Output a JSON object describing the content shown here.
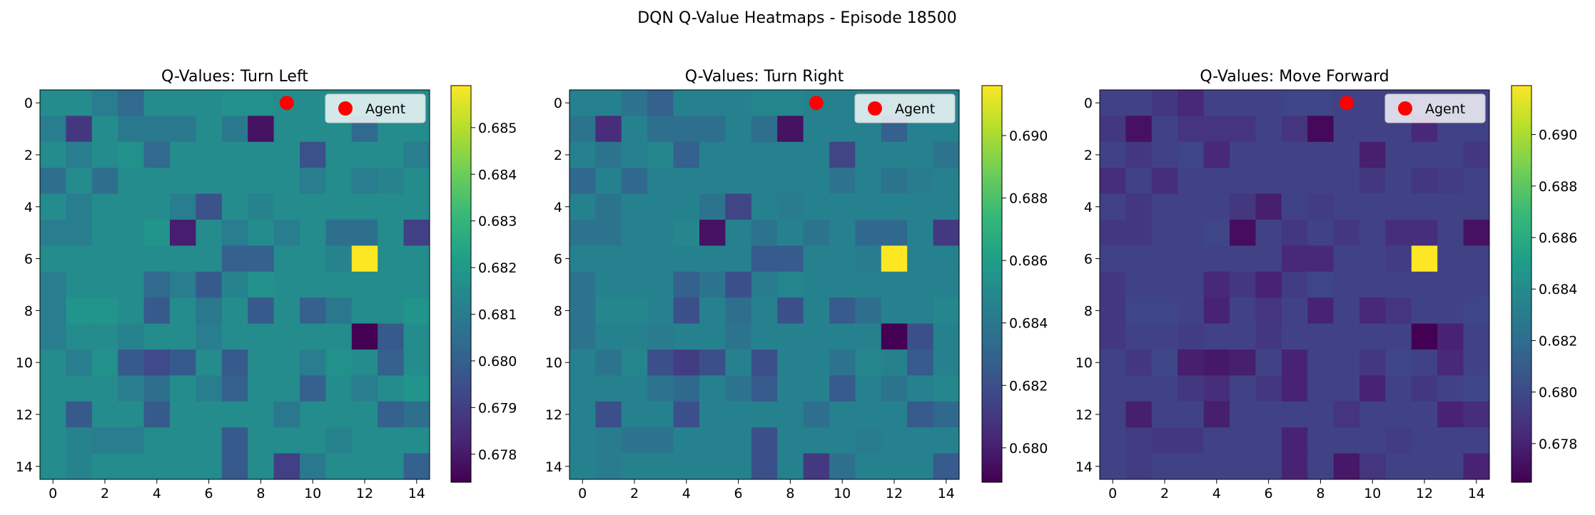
{
  "figure": {
    "title": "DQN Q-Value Heatmaps - Episode 18500"
  },
  "chart_data": [
    {
      "type": "heatmap",
      "title": "Q-Values: Turn Left",
      "grid_size": 15,
      "x_ticks": [
        "0",
        "2",
        "4",
        "6",
        "8",
        "10",
        "12",
        "14"
      ],
      "y_ticks": [
        "0",
        "2",
        "4",
        "6",
        "8",
        "10",
        "12",
        "14"
      ],
      "colorbar": {
        "vmin": 0.6774,
        "vmax": 0.6859,
        "ticks": [
          "0.678",
          "0.679",
          "0.680",
          "0.681",
          "0.682",
          "0.683",
          "0.684",
          "0.685"
        ]
      },
      "legend": {
        "label": "Agent",
        "placement": "top-right"
      },
      "agent": {
        "x": 9,
        "y": 0
      },
      "values": [
        [
          0.6815,
          0.6815,
          0.681,
          0.6803,
          0.6815,
          0.6815,
          0.6815,
          0.6817,
          0.6817,
          0.6815,
          0.6815,
          0.6815,
          0.6815,
          0.6815,
          0.6815
        ],
        [
          0.681,
          0.6788,
          0.6815,
          0.6808,
          0.6808,
          0.6808,
          0.6815,
          0.6808,
          0.6778,
          0.6815,
          0.6815,
          0.6815,
          0.6803,
          0.6815,
          0.6815
        ],
        [
          0.6815,
          0.681,
          0.6815,
          0.6817,
          0.6803,
          0.6815,
          0.6815,
          0.6815,
          0.6815,
          0.6815,
          0.6795,
          0.6815,
          0.6815,
          0.6815,
          0.681
        ],
        [
          0.6805,
          0.6815,
          0.6805,
          0.6815,
          0.6815,
          0.6815,
          0.6815,
          0.6815,
          0.6815,
          0.6815,
          0.681,
          0.6815,
          0.681,
          0.6812,
          0.6815
        ],
        [
          0.6815,
          0.681,
          0.6815,
          0.6815,
          0.6815,
          0.681,
          0.6795,
          0.6815,
          0.6812,
          0.6815,
          0.6815,
          0.6815,
          0.6815,
          0.6815,
          0.6815
        ],
        [
          0.681,
          0.681,
          0.6815,
          0.6815,
          0.6818,
          0.6781,
          0.6815,
          0.681,
          0.6815,
          0.681,
          0.6815,
          0.6805,
          0.6805,
          0.6815,
          0.679
        ],
        [
          0.6815,
          0.6815,
          0.6815,
          0.6815,
          0.6815,
          0.6815,
          0.6815,
          0.68,
          0.68,
          0.6815,
          0.6815,
          0.6812,
          0.6859,
          0.6815,
          0.6815
        ],
        [
          0.681,
          0.6815,
          0.6815,
          0.6815,
          0.6803,
          0.681,
          0.6798,
          0.6812,
          0.6817,
          0.6815,
          0.6815,
          0.6815,
          0.6815,
          0.6815,
          0.6815
        ],
        [
          0.681,
          0.6818,
          0.6818,
          0.6815,
          0.6798,
          0.6815,
          0.6808,
          0.6815,
          0.6798,
          0.6815,
          0.68,
          0.6808,
          0.6815,
          0.6815,
          0.6818
        ],
        [
          0.681,
          0.6815,
          0.6815,
          0.6812,
          0.6815,
          0.6815,
          0.681,
          0.6815,
          0.6815,
          0.6815,
          0.6815,
          0.6815,
          0.6774,
          0.6798,
          0.6815
        ],
        [
          0.6815,
          0.681,
          0.6817,
          0.6798,
          0.6793,
          0.6798,
          0.6815,
          0.6798,
          0.6815,
          0.6815,
          0.681,
          0.6817,
          0.6815,
          0.68,
          0.6815
        ],
        [
          0.6815,
          0.6815,
          0.6815,
          0.681,
          0.6805,
          0.6815,
          0.681,
          0.68,
          0.6815,
          0.6815,
          0.68,
          0.6815,
          0.681,
          0.6815,
          0.6818
        ],
        [
          0.6815,
          0.6798,
          0.6815,
          0.6815,
          0.6798,
          0.6815,
          0.6815,
          0.6815,
          0.6815,
          0.6808,
          0.6815,
          0.6815,
          0.6815,
          0.68,
          0.6805
        ],
        [
          0.6815,
          0.6812,
          0.681,
          0.681,
          0.6815,
          0.6815,
          0.6815,
          0.6798,
          0.6815,
          0.6815,
          0.6815,
          0.6812,
          0.6815,
          0.6815,
          0.6815
        ],
        [
          0.6815,
          0.6812,
          0.6815,
          0.6815,
          0.6815,
          0.6815,
          0.6815,
          0.6798,
          0.6815,
          0.679,
          0.6808,
          0.6815,
          0.6815,
          0.6815,
          0.68
        ]
      ]
    },
    {
      "type": "heatmap",
      "title": "Q-Values: Turn Right",
      "grid_size": 15,
      "x_ticks": [
        "0",
        "2",
        "4",
        "6",
        "8",
        "10",
        "12",
        "14"
      ],
      "y_ticks": [
        "0",
        "2",
        "4",
        "6",
        "8",
        "10",
        "12",
        "14"
      ],
      "colorbar": {
        "vmin": 0.6789,
        "vmax": 0.6916,
        "ticks": [
          "0.680",
          "0.682",
          "0.684",
          "0.686",
          "0.688",
          "0.690"
        ]
      },
      "legend": {
        "label": "Agent",
        "placement": "top-right"
      },
      "agent": {
        "x": 9,
        "y": 0
      },
      "values": [
        [
          0.6845,
          0.6845,
          0.6838,
          0.6828,
          0.6845,
          0.6845,
          0.6845,
          0.6847,
          0.6847,
          0.6845,
          0.6845,
          0.6845,
          0.6845,
          0.6845,
          0.6845
        ],
        [
          0.6838,
          0.6805,
          0.6845,
          0.6835,
          0.6835,
          0.6835,
          0.6845,
          0.6835,
          0.6795,
          0.6845,
          0.6845,
          0.6845,
          0.6828,
          0.6845,
          0.6845
        ],
        [
          0.6845,
          0.6838,
          0.6845,
          0.6847,
          0.6828,
          0.6845,
          0.6845,
          0.6845,
          0.6845,
          0.6845,
          0.6815,
          0.6845,
          0.6845,
          0.6845,
          0.6838
        ],
        [
          0.6832,
          0.6845,
          0.6832,
          0.6845,
          0.6845,
          0.6845,
          0.6845,
          0.6845,
          0.6845,
          0.6845,
          0.6838,
          0.6845,
          0.6838,
          0.6842,
          0.6845
        ],
        [
          0.6845,
          0.6838,
          0.6845,
          0.6845,
          0.6845,
          0.6838,
          0.6815,
          0.6845,
          0.6842,
          0.6845,
          0.6845,
          0.6845,
          0.6845,
          0.6845,
          0.6845
        ],
        [
          0.6838,
          0.6838,
          0.6845,
          0.6845,
          0.6848,
          0.6795,
          0.6845,
          0.6838,
          0.6845,
          0.6838,
          0.6845,
          0.6832,
          0.6832,
          0.6845,
          0.681
        ],
        [
          0.6845,
          0.6845,
          0.6845,
          0.6845,
          0.6845,
          0.6845,
          0.6845,
          0.6825,
          0.6825,
          0.6845,
          0.6845,
          0.6842,
          0.6916,
          0.6845,
          0.6845
        ],
        [
          0.6838,
          0.6845,
          0.6845,
          0.6845,
          0.6828,
          0.6838,
          0.682,
          0.6842,
          0.6847,
          0.6845,
          0.6845,
          0.6845,
          0.6845,
          0.6845,
          0.6845
        ],
        [
          0.6838,
          0.6848,
          0.6848,
          0.6845,
          0.682,
          0.6845,
          0.6835,
          0.6845,
          0.682,
          0.6845,
          0.6825,
          0.6835,
          0.6845,
          0.6845,
          0.6848
        ],
        [
          0.6838,
          0.6845,
          0.6845,
          0.6842,
          0.6845,
          0.6845,
          0.6838,
          0.6845,
          0.6845,
          0.6845,
          0.6845,
          0.6845,
          0.6789,
          0.682,
          0.6845
        ],
        [
          0.6845,
          0.6838,
          0.6847,
          0.682,
          0.6812,
          0.682,
          0.6845,
          0.682,
          0.6845,
          0.6845,
          0.6838,
          0.6847,
          0.6845,
          0.6825,
          0.6845
        ],
        [
          0.6845,
          0.6845,
          0.6845,
          0.6838,
          0.6832,
          0.6845,
          0.6838,
          0.6825,
          0.6845,
          0.6845,
          0.6825,
          0.6845,
          0.6838,
          0.6845,
          0.6848
        ],
        [
          0.6845,
          0.682,
          0.6845,
          0.6845,
          0.682,
          0.6845,
          0.6845,
          0.6845,
          0.6845,
          0.6835,
          0.6845,
          0.6845,
          0.6845,
          0.6825,
          0.6832
        ],
        [
          0.6845,
          0.6842,
          0.6838,
          0.6838,
          0.6845,
          0.6845,
          0.6845,
          0.682,
          0.6845,
          0.6845,
          0.6845,
          0.6842,
          0.6845,
          0.6845,
          0.6845
        ],
        [
          0.6845,
          0.6842,
          0.6845,
          0.6845,
          0.6845,
          0.6845,
          0.6845,
          0.682,
          0.6845,
          0.681,
          0.6835,
          0.6845,
          0.6845,
          0.6845,
          0.6825
        ]
      ]
    },
    {
      "type": "heatmap",
      "title": "Q-Values: Move Forward",
      "grid_size": 15,
      "x_ticks": [
        "0",
        "2",
        "4",
        "6",
        "8",
        "10",
        "12",
        "14"
      ],
      "y_ticks": [
        "0",
        "2",
        "4",
        "6",
        "8",
        "10",
        "12",
        "14"
      ],
      "colorbar": {
        "vmin": 0.6765,
        "vmax": 0.6919,
        "ticks": [
          "0.678",
          "0.680",
          "0.682",
          "0.684",
          "0.686",
          "0.688",
          "0.690"
        ]
      },
      "legend": {
        "label": "Agent",
        "placement": "top-right"
      },
      "agent": {
        "x": 9,
        "y": 0
      },
      "values": [
        [
          0.6795,
          0.6795,
          0.679,
          0.6782,
          0.6795,
          0.6795,
          0.6795,
          0.6797,
          0.6797,
          0.6795,
          0.6795,
          0.6795,
          0.6795,
          0.6795,
          0.6795
        ],
        [
          0.679,
          0.6772,
          0.6795,
          0.6788,
          0.6788,
          0.6788,
          0.6795,
          0.6788,
          0.6768,
          0.6795,
          0.6795,
          0.6795,
          0.6782,
          0.6795,
          0.6795
        ],
        [
          0.6795,
          0.679,
          0.6795,
          0.6797,
          0.6782,
          0.6795,
          0.6795,
          0.6795,
          0.6795,
          0.6795,
          0.6778,
          0.6795,
          0.6795,
          0.6795,
          0.679
        ],
        [
          0.6785,
          0.6795,
          0.6785,
          0.6795,
          0.6795,
          0.6795,
          0.6795,
          0.6795,
          0.6795,
          0.6795,
          0.679,
          0.6795,
          0.679,
          0.6792,
          0.6795
        ],
        [
          0.6795,
          0.679,
          0.6795,
          0.6795,
          0.6795,
          0.679,
          0.6778,
          0.6795,
          0.6792,
          0.6795,
          0.6795,
          0.6795,
          0.6795,
          0.6795,
          0.6795
        ],
        [
          0.679,
          0.679,
          0.6795,
          0.6795,
          0.6797,
          0.677,
          0.6795,
          0.679,
          0.6795,
          0.679,
          0.6795,
          0.6785,
          0.6785,
          0.6795,
          0.6772
        ],
        [
          0.6795,
          0.6795,
          0.6795,
          0.6795,
          0.6795,
          0.6795,
          0.6795,
          0.6782,
          0.6782,
          0.6795,
          0.6795,
          0.6792,
          0.6919,
          0.6795,
          0.6795
        ],
        [
          0.679,
          0.6795,
          0.6795,
          0.6795,
          0.6782,
          0.679,
          0.678,
          0.6792,
          0.6797,
          0.6795,
          0.6795,
          0.6795,
          0.6795,
          0.6795,
          0.6795
        ],
        [
          0.679,
          0.6797,
          0.6797,
          0.6795,
          0.678,
          0.6795,
          0.6788,
          0.6795,
          0.678,
          0.6795,
          0.6782,
          0.6788,
          0.6795,
          0.6795,
          0.6797
        ],
        [
          0.679,
          0.6795,
          0.6795,
          0.6792,
          0.6795,
          0.6795,
          0.679,
          0.6795,
          0.6795,
          0.6795,
          0.6795,
          0.6795,
          0.6765,
          0.678,
          0.6795
        ],
        [
          0.6795,
          0.679,
          0.6797,
          0.6778,
          0.6775,
          0.6778,
          0.6795,
          0.678,
          0.6795,
          0.6795,
          0.679,
          0.6797,
          0.6795,
          0.6782,
          0.6795
        ],
        [
          0.6795,
          0.6795,
          0.6795,
          0.679,
          0.6785,
          0.6795,
          0.679,
          0.678,
          0.6795,
          0.6795,
          0.678,
          0.6795,
          0.679,
          0.6795,
          0.6797
        ],
        [
          0.6795,
          0.6778,
          0.6795,
          0.6795,
          0.6778,
          0.6795,
          0.6795,
          0.6795,
          0.6795,
          0.6788,
          0.6795,
          0.6795,
          0.6795,
          0.678,
          0.6785
        ],
        [
          0.6795,
          0.6792,
          0.679,
          0.679,
          0.6795,
          0.6795,
          0.6795,
          0.678,
          0.6795,
          0.6795,
          0.6795,
          0.6792,
          0.6795,
          0.6795,
          0.6795
        ],
        [
          0.6795,
          0.6792,
          0.6795,
          0.6795,
          0.6795,
          0.6795,
          0.6795,
          0.678,
          0.6795,
          0.6775,
          0.6788,
          0.6795,
          0.6795,
          0.6795,
          0.678
        ]
      ]
    }
  ],
  "colors": {
    "agent_marker": "#ff0000",
    "colormap": "viridis"
  }
}
